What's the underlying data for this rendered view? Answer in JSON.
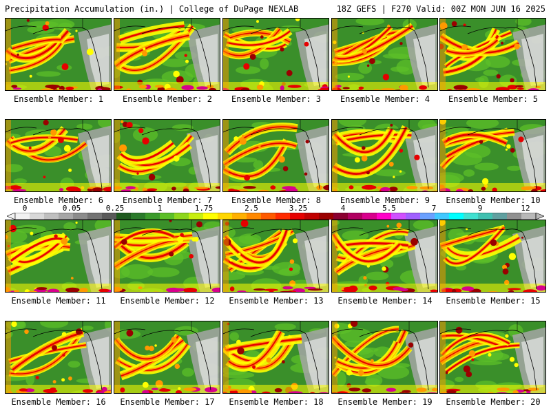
{
  "header": {
    "left": "Precipitation Accumulation (in.) | College of DuPage NEXLAB",
    "right": "18Z GEFS | F270 Valid: 00Z MON JUN 16 2025"
  },
  "panels": [
    {
      "label": "Ensemble Member: 1"
    },
    {
      "label": "Ensemble Member: 2"
    },
    {
      "label": "Ensemble Member: 3"
    },
    {
      "label": "Ensemble Member: 4"
    },
    {
      "label": "Ensemble Member: 5"
    },
    {
      "label": "Ensemble Member: 6"
    },
    {
      "label": "Ensemble Member: 7"
    },
    {
      "label": "Ensemble Member: 8"
    },
    {
      "label": "Ensemble Member: 9"
    },
    {
      "label": "Ensemble Member: 10"
    },
    {
      "label": "Ensemble Member: 11"
    },
    {
      "label": "Ensemble Member: 12"
    },
    {
      "label": "Ensemble Member: 13"
    },
    {
      "label": "Ensemble Member: 14"
    },
    {
      "label": "Ensemble Member: 15"
    },
    {
      "label": "Ensemble Member: 16"
    },
    {
      "label": "Ensemble Member: 17"
    },
    {
      "label": "Ensemble Member: 18"
    },
    {
      "label": "Ensemble Member: 19"
    },
    {
      "label": "Ensemble Member: 20"
    }
  ],
  "colorbar": {
    "ticks": [
      "0",
      "0.05",
      "0.25",
      "1",
      "1.75",
      "2.5",
      "3.25",
      "4",
      "5.5",
      "7",
      "9",
      "12"
    ],
    "colors": [
      "#f2f2f2",
      "#d8d8d8",
      "#bfbfbf",
      "#a6a6a6",
      "#8c8c8c",
      "#737373",
      "#5a5a5a",
      "#1e5a1e",
      "#2a7a2a",
      "#3a9a2a",
      "#5cbf28",
      "#8ed61c",
      "#c8ee10",
      "#ffff00",
      "#ffd700",
      "#ffb000",
      "#ff8800",
      "#ff5a00",
      "#ff2a00",
      "#e60000",
      "#c00000",
      "#9a0000",
      "#8a0030",
      "#b00060",
      "#d8008c",
      "#ff00c8",
      "#d050ff",
      "#a060ff",
      "#6aa0ff",
      "#40c8ff",
      "#00ffff",
      "#40e0d0",
      "#40c0b0",
      "#60a0a0",
      "#909090",
      "#b8b8b8"
    ]
  },
  "map_colors": {
    "ocean_base": "#3a8f2a",
    "light_green": "#5cbf28",
    "yellow": "#ffff00",
    "orange": "#ff9900",
    "red": "#e60000",
    "dark_red": "#9a0000",
    "magenta": "#d8008c",
    "gray": "#a6a6a6",
    "white": "#e8e8e8",
    "coast": "#000000"
  }
}
